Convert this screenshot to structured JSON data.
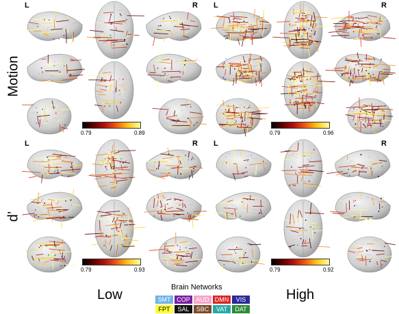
{
  "rows": [
    {
      "id": "motion",
      "label": "Motion"
    },
    {
      "id": "dprime",
      "label": "d’"
    }
  ],
  "columns": [
    {
      "id": "low",
      "label": "Low"
    },
    {
      "id": "high",
      "label": "High"
    }
  ],
  "hemisphere_labels": {
    "left": "L",
    "right": "R"
  },
  "panels": [
    {
      "row": "motion",
      "column": "low",
      "scale_min": "0.79",
      "scale_max": "0.89",
      "edge_density": "low"
    },
    {
      "row": "motion",
      "column": "high",
      "scale_min": "0.79",
      "scale_max": "0.96",
      "edge_density": "high"
    },
    {
      "row": "dprime",
      "column": "low",
      "scale_min": "0.79",
      "scale_max": "0.93",
      "edge_density": "medium"
    },
    {
      "row": "dprime",
      "column": "high",
      "scale_min": "0.79",
      "scale_max": "0.92",
      "edge_density": "low"
    }
  ],
  "legend": {
    "title": "Brain Networks",
    "networks": [
      {
        "abbr": "SMT",
        "color": "#6fb3e8",
        "text_color": "#ffffff"
      },
      {
        "abbr": "COP",
        "color": "#7a1fa2",
        "text_color": "#ffffff"
      },
      {
        "abbr": "AUD",
        "color": "#f4a6c8",
        "text_color": "#ffffff"
      },
      {
        "abbr": "DMN",
        "color": "#d92525",
        "text_color": "#ffffff"
      },
      {
        "abbr": "VIS",
        "color": "#2a2a9a",
        "text_color": "#ffffff"
      },
      {
        "abbr": "FPT",
        "color": "#ffff33",
        "text_color": "#000000"
      },
      {
        "abbr": "SAL",
        "color": "#111111",
        "text_color": "#ffffff"
      },
      {
        "abbr": "SBC",
        "color": "#7a4a2a",
        "text_color": "#ffffff"
      },
      {
        "abbr": "VAT",
        "color": "#2aa8a8",
        "text_color": "#ffffff"
      },
      {
        "abbr": "DAT",
        "color": "#2e8b3a",
        "text_color": "#ffffff"
      }
    ]
  },
  "colorscale": [
    "#000000",
    "#b01010",
    "#ee5a10",
    "#ffc21a",
    "#ffff9a"
  ]
}
